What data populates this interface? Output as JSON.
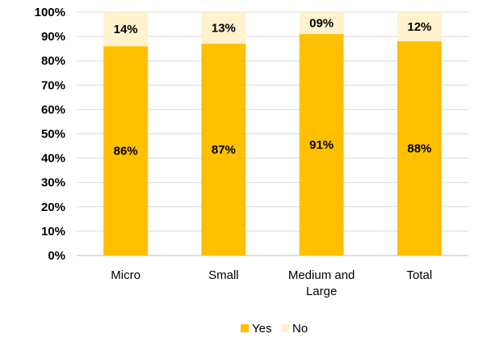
{
  "chart_data": {
    "type": "bar",
    "stacked": true,
    "categories": [
      "Micro",
      "Small",
      "Medium and\nLarge",
      "Total"
    ],
    "series": [
      {
        "name": "Yes",
        "values": [
          86,
          87,
          91,
          88
        ],
        "labels": [
          "86%",
          "87%",
          "91%",
          "88%"
        ],
        "color": "#FFC000"
      },
      {
        "name": "No",
        "values": [
          14,
          13,
          9,
          12
        ],
        "labels": [
          "14%",
          "13%",
          "09%",
          "12%"
        ],
        "color": "#FFF2CC"
      }
    ],
    "yticks": [
      "0%",
      "10%",
      "20%",
      "30%",
      "40%",
      "50%",
      "60%",
      "70%",
      "80%",
      "90%",
      "100%"
    ],
    "ylim": [
      0,
      100
    ],
    "grid": true,
    "legend": "bottom",
    "title": "",
    "xlabel": "",
    "ylabel": ""
  }
}
